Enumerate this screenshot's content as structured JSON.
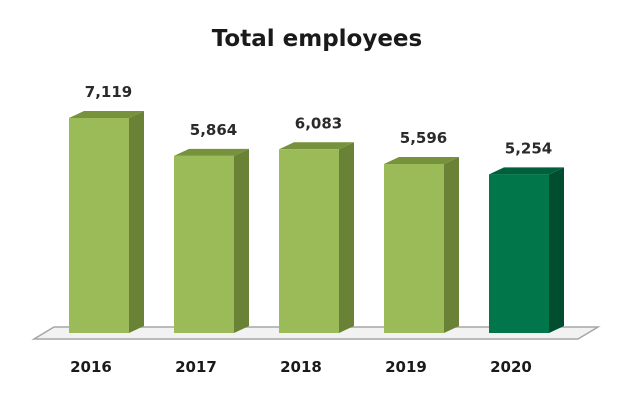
{
  "chart_data": {
    "type": "bar",
    "title": "Total employees",
    "categories": [
      "2016",
      "2017",
      "2018",
      "2019",
      "2020"
    ],
    "values": [
      7119,
      5864,
      6083,
      5596,
      5254
    ],
    "value_labels": [
      "7,119",
      "5,864",
      "6,083",
      "5,596",
      "5,254"
    ],
    "ylim": [
      0,
      8000
    ],
    "grid": false,
    "legend": "none",
    "colors": {
      "bar": "#9bbb59",
      "bar_side": "#6a8236",
      "bar_top": "#76923c",
      "highlight": "#00764a",
      "highlight_side": "#004d30",
      "highlight_top": "#00603c",
      "floor": "#f2f2f2",
      "floor_edge": "#a6a6a6"
    },
    "highlight_index": 4
  }
}
